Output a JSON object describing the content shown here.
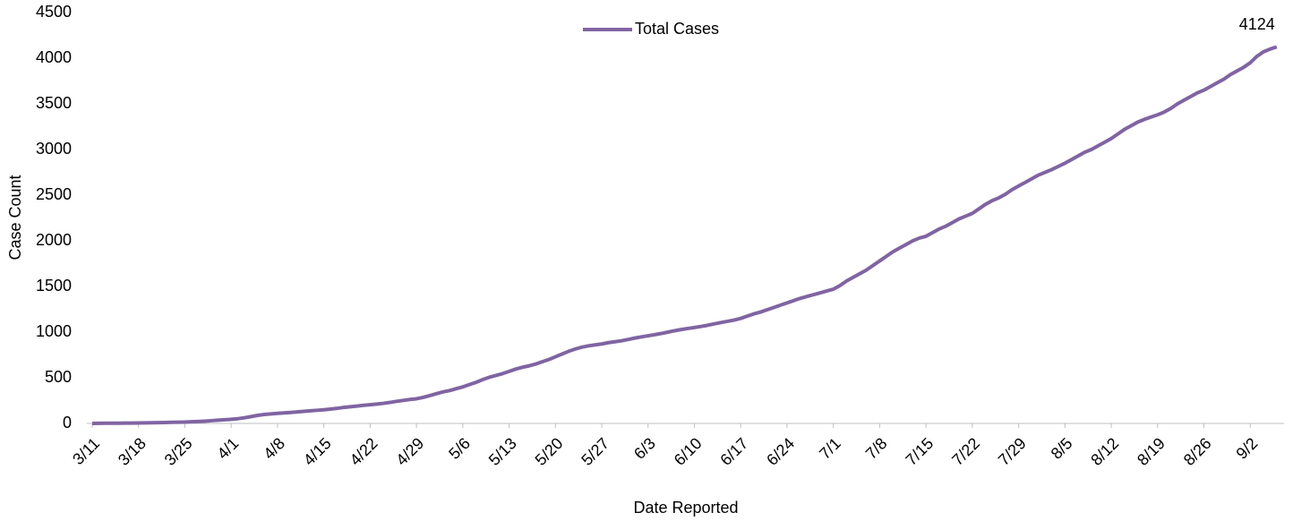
{
  "chart_data": {
    "type": "line",
    "x_label": "Date Reported",
    "y_label": "Case Count",
    "categories": [
      "3/11",
      null,
      null,
      null,
      null,
      null,
      null,
      "3/18",
      null,
      null,
      null,
      null,
      null,
      null,
      "3/25",
      null,
      null,
      null,
      null,
      null,
      null,
      "4/1",
      null,
      null,
      null,
      null,
      null,
      null,
      "4/8",
      null,
      null,
      null,
      null,
      null,
      null,
      "4/15",
      null,
      null,
      null,
      null,
      null,
      null,
      "4/22",
      null,
      null,
      null,
      null,
      null,
      null,
      "4/29",
      null,
      null,
      null,
      null,
      null,
      null,
      "5/6",
      null,
      null,
      null,
      null,
      null,
      null,
      "5/13",
      null,
      null,
      null,
      null,
      null,
      null,
      "5/20",
      null,
      null,
      null,
      null,
      null,
      null,
      "5/27",
      null,
      null,
      null,
      null,
      null,
      null,
      "6/3",
      null,
      null,
      null,
      null,
      null,
      null,
      "6/10",
      null,
      null,
      null,
      null,
      null,
      null,
      "6/17",
      null,
      null,
      null,
      null,
      null,
      null,
      "6/24",
      null,
      null,
      null,
      null,
      null,
      null,
      "7/1",
      null,
      null,
      null,
      null,
      null,
      null,
      "7/8",
      null,
      null,
      null,
      null,
      null,
      null,
      "7/15",
      null,
      null,
      null,
      null,
      null,
      null,
      "7/22",
      null,
      null,
      null,
      null,
      null,
      null,
      "7/29",
      null,
      null,
      null,
      null,
      null,
      null,
      "8/5",
      null,
      null,
      null,
      null,
      null,
      null,
      "8/12",
      null,
      null,
      null,
      null,
      null,
      null,
      "8/19",
      null,
      null,
      null,
      null,
      null,
      null,
      "8/26",
      null,
      null,
      null,
      null,
      null,
      null,
      "9/2",
      null,
      null,
      null,
      null
    ],
    "series": [
      {
        "name": "Total Cases",
        "color": "#8064a2",
        "values": [
          0,
          1,
          2,
          3,
          3,
          4,
          4,
          5,
          6,
          7,
          9,
          10,
          12,
          13,
          15,
          18,
          21,
          25,
          30,
          35,
          40,
          45,
          52,
          62,
          75,
          88,
          98,
          104,
          110,
          115,
          120,
          126,
          132,
          138,
          144,
          150,
          157,
          165,
          175,
          183,
          190,
          198,
          205,
          212,
          220,
          230,
          242,
          252,
          262,
          270,
          285,
          305,
          325,
          345,
          360,
          380,
          400,
          425,
          450,
          480,
          505,
          525,
          545,
          570,
          595,
          615,
          630,
          650,
          675,
          700,
          730,
          760,
          790,
          815,
          835,
          850,
          860,
          870,
          885,
          895,
          905,
          920,
          935,
          948,
          960,
          972,
          985,
          1000,
          1015,
          1028,
          1040,
          1050,
          1062,
          1075,
          1090,
          1105,
          1118,
          1132,
          1150,
          1175,
          1200,
          1220,
          1245,
          1270,
          1295,
          1320,
          1345,
          1370,
          1390,
          1410,
          1430,
          1450,
          1470,
          1510,
          1560,
          1600,
          1640,
          1680,
          1730,
          1780,
          1830,
          1880,
          1920,
          1960,
          2000,
          2030,
          2050,
          2090,
          2130,
          2160,
          2200,
          2240,
          2270,
          2300,
          2350,
          2400,
          2440,
          2470,
          2510,
          2560,
          2600,
          2640,
          2680,
          2720,
          2750,
          2780,
          2815,
          2850,
          2890,
          2930,
          2970,
          3000,
          3040,
          3080,
          3120,
          3170,
          3220,
          3260,
          3300,
          3330,
          3355,
          3380,
          3410,
          3450,
          3500,
          3540,
          3580,
          3620,
          3650,
          3690,
          3730,
          3770,
          3820,
          3860,
          3900,
          3950,
          4020,
          4070,
          4100,
          4124
        ]
      }
    ],
    "ylim": [
      0,
      4500
    ],
    "yticks": [
      0,
      500,
      1000,
      1500,
      2000,
      2500,
      3000,
      3500,
      4000,
      4500
    ],
    "grid": false,
    "legend": "top"
  }
}
